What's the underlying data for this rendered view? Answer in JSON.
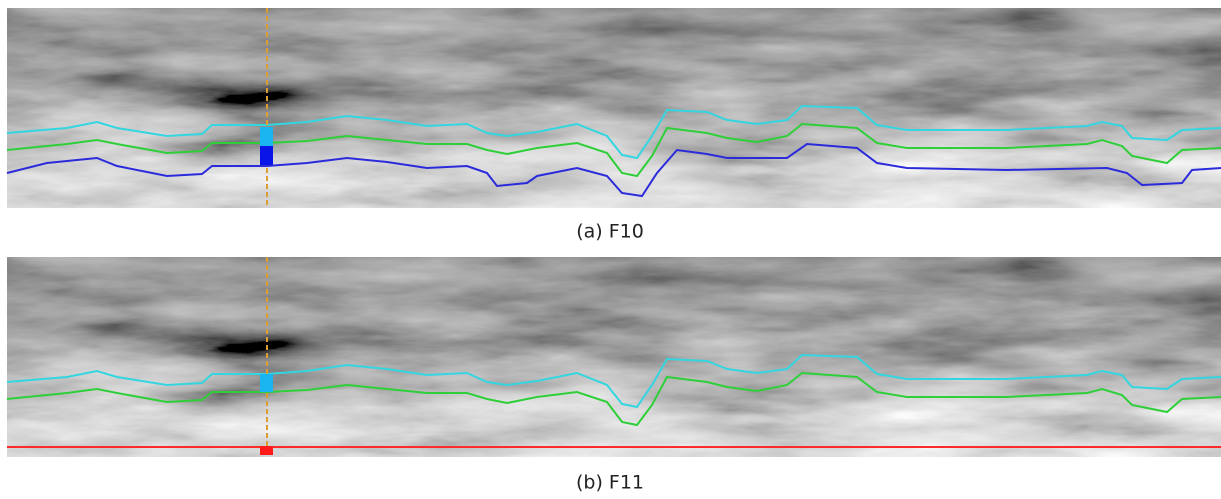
{
  "panels": [
    {
      "caption": "(a) F10"
    },
    {
      "caption": "(b) F11"
    }
  ]
}
